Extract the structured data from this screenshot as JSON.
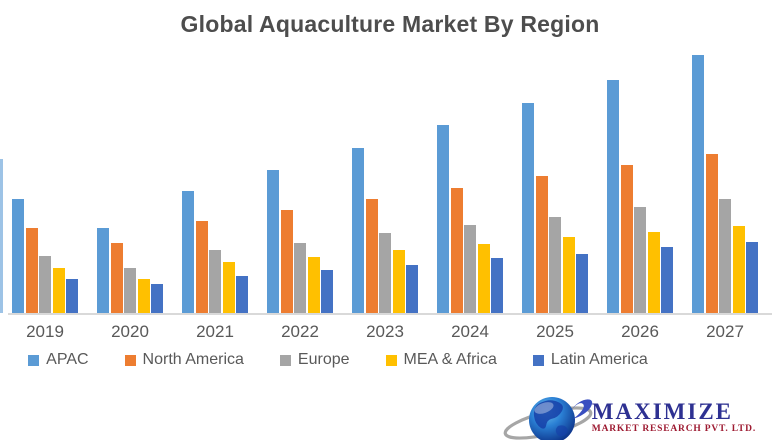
{
  "title": "Global Aquaculture Market By Region",
  "chart_data": {
    "type": "bar",
    "title": "Global Aquaculture Market By Region",
    "xlabel": "",
    "ylabel": "",
    "categories": [
      "2019",
      "2020",
      "2021",
      "2022",
      "2023",
      "2024",
      "2025",
      "2026",
      "2027"
    ],
    "series": [
      {
        "name": "APAC",
        "color": "#5B9BD5",
        "values": [
          114,
          85,
          122,
          143,
          165,
          188,
          210,
          233,
          258
        ]
      },
      {
        "name": "North America",
        "color": "#ED7D31",
        "values": [
          85,
          70,
          92,
          103,
          114,
          125,
          137,
          148,
          159
        ]
      },
      {
        "name": "Europe",
        "color": "#A5A5A5",
        "values": [
          57,
          45,
          63,
          70,
          80,
          88,
          96,
          106,
          114
        ]
      },
      {
        "name": "MEA & Africa",
        "color": "#FFC000",
        "values": [
          45,
          34,
          51,
          56,
          63,
          69,
          76,
          81,
          87
        ]
      },
      {
        "name": "Latin America",
        "color": "#4472C4",
        "values": [
          34,
          29,
          37,
          43,
          48,
          55,
          59,
          66,
          71
        ]
      }
    ],
    "value_units": "relative height (no y-axis labels shown in chart)",
    "ylim": [
      0,
      265
    ],
    "grid": false,
    "y_axis_visible": false,
    "legend_position": "bottom"
  },
  "colors": {
    "title_text": "#4d4d4d",
    "axis_line": "#d9d9d9",
    "tick_label": "#595959",
    "legend_label": "#595959",
    "background": "#ffffff"
  },
  "logo": {
    "brand": "MAXIMIZE",
    "subtitle": "MARKET RESEARCH PVT. LTD.",
    "brand_color": "#2e3192",
    "subtitle_color": "#9e1b32"
  }
}
